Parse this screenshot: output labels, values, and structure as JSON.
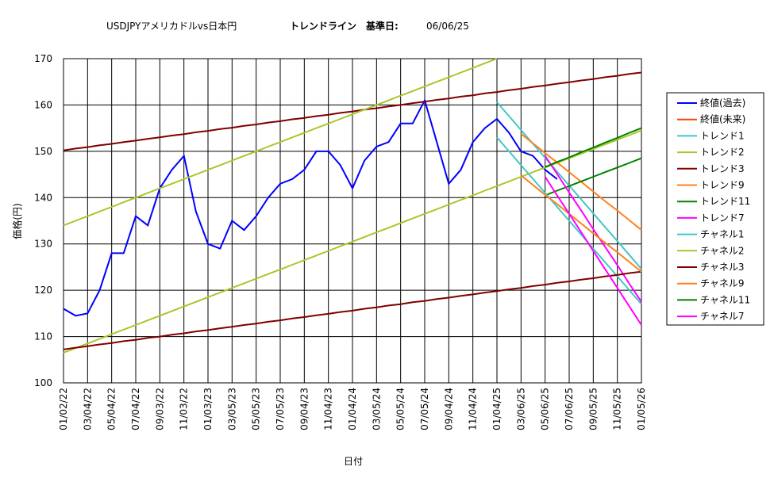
{
  "chart_data": {
    "type": "line",
    "title": "USDJPYアメリカドルvs日本円",
    "subtitle": "トレンドライン　基準日:",
    "reference_date": "06/06/25",
    "y_label": "価格(円)",
    "x_label": "日付",
    "categories": [
      "01/02/22",
      null,
      "03/04/22",
      null,
      "05/04/22",
      null,
      "07/04/22",
      null,
      "09/03/22",
      null,
      "11/03/22",
      null,
      "01/03/23",
      null,
      "03/05/23",
      null,
      "05/05/23",
      null,
      "07/05/23",
      null,
      "09/04/23",
      null,
      "11/04/23",
      null,
      "01/04/24",
      null,
      "03/05/24",
      null,
      "05/05/24",
      null,
      "07/05/24",
      null,
      "09/04/24",
      null,
      "11/04/24",
      null,
      "01/04/25",
      null,
      "03/06/25",
      null,
      "05/06/25",
      null,
      "07/06/25",
      null,
      "09/05/25",
      null,
      "11/05/25",
      null,
      "01/05/26"
    ],
    "ylim": [
      100,
      170
    ],
    "yticks": [
      100,
      110,
      120,
      130,
      140,
      150,
      160,
      170
    ],
    "grid": true,
    "legend": "right",
    "series": [
      {
        "name": "終値(過去)",
        "color": "#0000ff",
        "values": [
          116,
          114.5,
          115,
          120,
          128,
          128,
          136,
          134,
          142,
          146,
          149,
          137,
          130,
          129,
          135,
          133,
          136,
          140,
          143,
          144,
          146,
          150,
          150,
          147,
          142,
          148,
          151,
          152,
          156,
          156,
          161,
          152,
          143,
          146,
          152,
          155,
          157,
          154,
          150,
          149,
          146,
          144,
          null,
          null,
          null,
          null,
          null,
          null,
          null
        ]
      },
      {
        "name": "終値(未来)",
        "color": "#ff4000",
        "values": [
          null,
          null,
          null,
          null,
          null,
          null,
          null,
          null,
          null,
          null,
          null,
          null,
          null,
          null,
          null,
          null,
          null,
          null,
          null,
          null,
          null,
          null,
          null,
          null,
          null,
          null,
          null,
          null,
          null,
          null,
          null,
          null,
          null,
          null,
          null,
          null,
          null,
          null,
          null,
          null,
          null,
          null,
          null,
          null,
          null,
          null,
          null,
          null,
          null
        ]
      },
      {
        "name": "トレンド1",
        "color": "#40c8c8",
        "values": [
          null,
          null,
          null,
          null,
          null,
          null,
          null,
          null,
          null,
          null,
          null,
          null,
          null,
          null,
          null,
          null,
          null,
          null,
          null,
          null,
          null,
          null,
          null,
          null,
          null,
          null,
          null,
          null,
          null,
          null,
          null,
          null,
          null,
          null,
          null,
          null,
          160.6,
          157.6,
          154.6,
          151.6,
          148.6,
          145.6,
          142.6,
          139.6,
          136.6,
          133.6,
          130.6,
          127.6,
          124.6
        ]
      },
      {
        "name": "トレンド2",
        "color": "#a8c828",
        "values": [
          106.5,
          107.5,
          108.5,
          109.5,
          110.5,
          111.5,
          112.5,
          113.5,
          114.5,
          115.5,
          116.5,
          117.5,
          118.5,
          119.5,
          120.5,
          121.5,
          122.5,
          123.5,
          124.5,
          125.5,
          126.5,
          127.5,
          128.5,
          129.5,
          130.5,
          131.5,
          132.5,
          133.5,
          134.5,
          135.5,
          136.5,
          137.5,
          138.5,
          139.5,
          140.5,
          141.5,
          142.5,
          143.5,
          144.5,
          145.5,
          146.5,
          147.5,
          148.5,
          149.5,
          150.5,
          151.5,
          152.5,
          153.5,
          154.5
        ]
      },
      {
        "name": "トレンド3",
        "color": "#800000",
        "values": [
          150.2,
          150.6,
          150.9,
          151.3,
          151.6,
          152.0,
          152.3,
          152.7,
          153.0,
          153.4,
          153.7,
          154.1,
          154.4,
          154.8,
          155.1,
          155.5,
          155.8,
          156.2,
          156.5,
          156.9,
          157.2,
          157.6,
          157.9,
          158.3,
          158.6,
          159.0,
          159.3,
          159.7,
          160.0,
          160.4,
          160.7,
          161.1,
          161.4,
          161.8,
          162.1,
          162.5,
          162.8,
          163.2,
          163.5,
          163.9,
          164.2,
          164.6,
          164.9,
          165.3,
          165.6,
          166.0,
          166.3,
          166.7,
          167.0
        ]
      },
      {
        "name": "トレンド9",
        "color": "#ff8020",
        "values": [
          null,
          null,
          null,
          null,
          null,
          null,
          null,
          null,
          null,
          null,
          null,
          null,
          null,
          null,
          null,
          null,
          null,
          null,
          null,
          null,
          null,
          null,
          null,
          null,
          null,
          null,
          null,
          null,
          null,
          null,
          null,
          null,
          null,
          null,
          null,
          null,
          null,
          null,
          153.8,
          151.7,
          149.6,
          147.6,
          145.5,
          143.4,
          141.3,
          139.2,
          137.2,
          135.1,
          133.0
        ]
      },
      {
        "name": "トレンド11",
        "color": "#008000",
        "values": [
          null,
          null,
          null,
          null,
          null,
          null,
          null,
          null,
          null,
          null,
          null,
          null,
          null,
          null,
          null,
          null,
          null,
          null,
          null,
          null,
          null,
          null,
          null,
          null,
          null,
          null,
          null,
          null,
          null,
          null,
          null,
          null,
          null,
          null,
          null,
          null,
          null,
          null,
          null,
          null,
          140.5,
          141.5,
          142.5,
          143.5,
          144.5,
          145.5,
          146.5,
          147.5,
          148.5
        ]
      },
      {
        "name": "トレンド7",
        "color": "#ff00ff",
        "values": [
          null,
          null,
          null,
          null,
          null,
          null,
          null,
          null,
          null,
          null,
          null,
          null,
          null,
          null,
          null,
          null,
          null,
          null,
          null,
          null,
          null,
          null,
          null,
          null,
          null,
          null,
          null,
          null,
          null,
          null,
          null,
          null,
          null,
          null,
          null,
          null,
          null,
          null,
          null,
          null,
          149.0,
          145.1,
          141.1,
          137.2,
          133.2,
          129.3,
          125.4,
          121.4,
          117.5
        ]
      },
      {
        "name": "チャネル1",
        "color": "#40c8c8",
        "values": [
          null,
          null,
          null,
          null,
          null,
          null,
          null,
          null,
          null,
          null,
          null,
          null,
          null,
          null,
          null,
          null,
          null,
          null,
          null,
          null,
          null,
          null,
          null,
          null,
          null,
          null,
          null,
          null,
          null,
          null,
          null,
          null,
          null,
          null,
          null,
          null,
          153,
          150,
          147,
          144,
          141,
          138,
          135,
          132,
          129,
          126,
          123,
          120,
          117
        ]
      },
      {
        "name": "チャネル2",
        "color": "#a8c828",
        "values": [
          134,
          135,
          136,
          137,
          138,
          139,
          140,
          141,
          142,
          143,
          144,
          145,
          146,
          147,
          148,
          149,
          150,
          151,
          152,
          153,
          154,
          155,
          156,
          157,
          158,
          159,
          160,
          161,
          162,
          163,
          164,
          165,
          166,
          167,
          168,
          169,
          170,
          null,
          null,
          null,
          null,
          null,
          null,
          null,
          null,
          null,
          null,
          null,
          null
        ]
      },
      {
        "name": "チャネル3",
        "color": "#800000",
        "values": [
          107.2,
          107.6,
          107.9,
          108.3,
          108.6,
          109.0,
          109.3,
          109.7,
          110.0,
          110.4,
          110.7,
          111.1,
          111.4,
          111.8,
          112.1,
          112.5,
          112.8,
          113.2,
          113.5,
          113.9,
          114.2,
          114.6,
          114.9,
          115.3,
          115.6,
          116.0,
          116.3,
          116.7,
          117.0,
          117.4,
          117.7,
          118.1,
          118.4,
          118.8,
          119.1,
          119.5,
          119.8,
          120.2,
          120.5,
          120.9,
          121.2,
          121.6,
          121.9,
          122.3,
          122.6,
          123.0,
          123.3,
          123.7,
          124.0
        ]
      },
      {
        "name": "チャネル9",
        "color": "#ff8020",
        "values": [
          null,
          null,
          null,
          null,
          null,
          null,
          null,
          null,
          null,
          null,
          null,
          null,
          null,
          null,
          null,
          null,
          null,
          null,
          null,
          null,
          null,
          null,
          null,
          null,
          null,
          null,
          null,
          null,
          null,
          null,
          null,
          null,
          null,
          null,
          null,
          null,
          null,
          null,
          144.8,
          142.7,
          140.6,
          138.6,
          136.5,
          134.4,
          132.3,
          130.2,
          128.2,
          126.1,
          124.0
        ]
      },
      {
        "name": "チャネル11",
        "color": "#008000",
        "values": [
          null,
          null,
          null,
          null,
          null,
          null,
          null,
          null,
          null,
          null,
          null,
          null,
          null,
          null,
          null,
          null,
          null,
          null,
          null,
          null,
          null,
          null,
          null,
          null,
          null,
          null,
          null,
          null,
          null,
          null,
          null,
          null,
          null,
          null,
          null,
          null,
          null,
          null,
          null,
          null,
          146.6,
          147.7,
          148.7,
          149.8,
          150.8,
          151.9,
          152.9,
          154.0,
          155.0
        ]
      },
      {
        "name": "チャネル7",
        "color": "#ff00ff",
        "values": [
          null,
          null,
          null,
          null,
          null,
          null,
          null,
          null,
          null,
          null,
          null,
          null,
          null,
          null,
          null,
          null,
          null,
          null,
          null,
          null,
          null,
          null,
          null,
          null,
          null,
          null,
          null,
          null,
          null,
          null,
          null,
          null,
          null,
          null,
          null,
          null,
          null,
          null,
          null,
          null,
          144.5,
          140.5,
          136.5,
          132.5,
          128.5,
          124.5,
          120.5,
          116.5,
          112.5
        ]
      }
    ]
  }
}
